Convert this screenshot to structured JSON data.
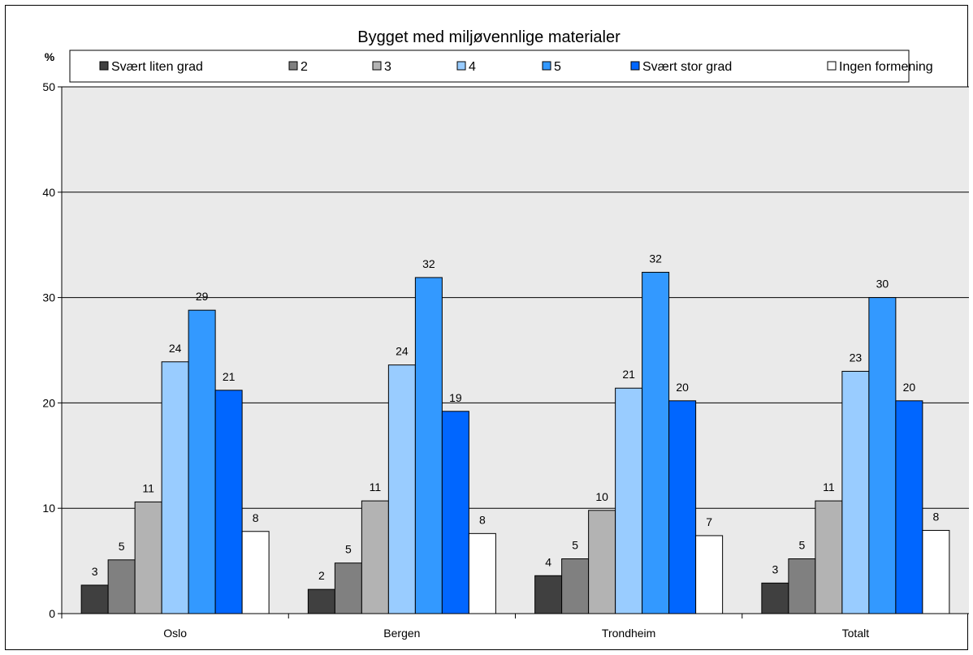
{
  "chart_data": {
    "type": "bar",
    "title": "Bygget med miljøvennlige materialer",
    "ylabel": "%",
    "xlabel": "",
    "ylim": [
      0,
      50
    ],
    "yticks": [
      0,
      10,
      20,
      30,
      40,
      50
    ],
    "grid": true,
    "legend_position": "top",
    "categories": [
      "Oslo",
      "Bergen",
      "Trondheim",
      "Totalt"
    ],
    "series": [
      {
        "name": "Svært liten grad",
        "color": "#404040",
        "values": [
          2.7,
          2.3,
          3.6,
          2.9
        ],
        "labels": [
          "3",
          "2",
          "4",
          "3"
        ]
      },
      {
        "name": "2",
        "color": "#808080",
        "values": [
          5.1,
          4.8,
          5.2,
          5.2
        ],
        "labels": [
          "5",
          "5",
          "5",
          "5"
        ]
      },
      {
        "name": "3",
        "color": "#b3b3b3",
        "values": [
          10.6,
          10.7,
          9.8,
          10.7
        ],
        "labels": [
          "11",
          "11",
          "10",
          "11"
        ]
      },
      {
        "name": "4",
        "color": "#99ccff",
        "values": [
          23.9,
          23.6,
          21.4,
          23.0
        ],
        "labels": [
          "24",
          "24",
          "21",
          "23"
        ]
      },
      {
        "name": "5",
        "color": "#3399ff",
        "values": [
          28.8,
          31.9,
          32.4,
          30.0
        ],
        "labels": [
          "29",
          "32",
          "32",
          "30"
        ]
      },
      {
        "name": "Svært stor grad",
        "color": "#0066ff",
        "values": [
          21.2,
          19.2,
          20.2,
          20.2
        ],
        "labels": [
          "21",
          "19",
          "20",
          "20"
        ]
      },
      {
        "name": "Ingen formening",
        "color": "#ffffff",
        "values": [
          7.8,
          7.6,
          7.4,
          7.9
        ],
        "labels": [
          "8",
          "8",
          "7",
          "8"
        ]
      }
    ]
  }
}
